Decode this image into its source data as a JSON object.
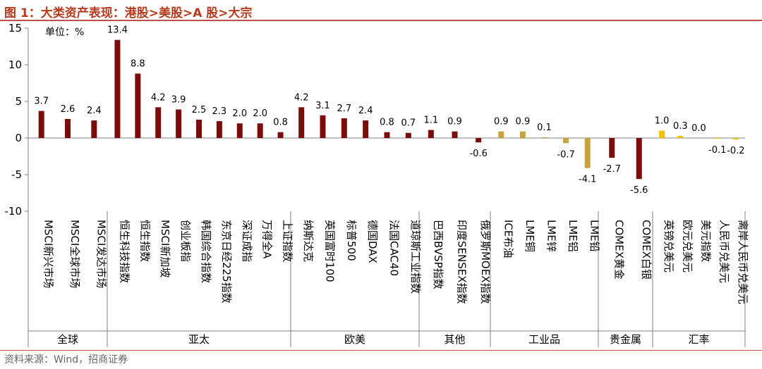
{
  "title": "图 1：大类资产表现：港股>美股>A 股>大宗",
  "source": "资料来源：Wind，招商证券",
  "unit_label": "单位：%",
  "colors": {
    "accent": "#b53a1e",
    "bar_default": "#7b0c0c",
    "bar_commodity": "#c9a240",
    "bar_fx": "#f2c200",
    "axis": "#808080"
  },
  "chart_data": {
    "type": "bar",
    "title": "大类资产表现：港股>美股>A 股>大宗",
    "ylabel": "单位：%",
    "ylim": [
      -10,
      15
    ],
    "yticks": [
      15,
      10,
      5,
      0,
      -5,
      -10
    ],
    "groups": [
      {
        "name": "全球",
        "items": [
          {
            "label": "MSCI新兴市场",
            "value": 3.7,
            "display": "3.7"
          },
          {
            "label": "MSCI全球市场",
            "value": 2.6,
            "display": "2.6"
          },
          {
            "label": "MSCI发达市场",
            "value": 2.4,
            "display": "2.4"
          }
        ]
      },
      {
        "name": "亚太",
        "items": [
          {
            "label": "恒生科技指数",
            "value": 13.4,
            "display": "13.4"
          },
          {
            "label": "恒生指数",
            "value": 8.8,
            "display": "8.8"
          },
          {
            "label": "MSCI新加坡",
            "value": 4.2,
            "display": "4.2"
          },
          {
            "label": "创业板指",
            "value": 3.9,
            "display": "3.9"
          },
          {
            "label": "韩国综合指数",
            "value": 2.5,
            "display": "2.5"
          },
          {
            "label": "东京日经225指数",
            "value": 2.3,
            "display": "2.3"
          },
          {
            "label": "深证成指",
            "value": 2.0,
            "display": "2.0"
          },
          {
            "label": "万得全A",
            "value": 2.0,
            "display": "2.0"
          },
          {
            "label": "上证指数",
            "value": 0.8,
            "display": "0.8"
          }
        ]
      },
      {
        "name": "欧美",
        "items": [
          {
            "label": "纳斯达克",
            "value": 4.2,
            "display": "4.2"
          },
          {
            "label": "英国富时100",
            "value": 3.1,
            "display": "3.1"
          },
          {
            "label": "标普500",
            "value": 2.7,
            "display": "2.7"
          },
          {
            "label": "德国DAX",
            "value": 2.4,
            "display": "2.4"
          },
          {
            "label": "法国CAC40",
            "value": 0.8,
            "display": "0.8"
          },
          {
            "label": "道琼斯工业指数",
            "value": 0.7,
            "display": "0.7"
          }
        ]
      },
      {
        "name": "其他",
        "items": [
          {
            "label": "巴西BVSP指数",
            "value": 1.1,
            "display": "1.1"
          },
          {
            "label": "印度SENSEX指数",
            "value": 0.9,
            "display": "0.9"
          },
          {
            "label": "俄罗斯MOEX指数",
            "value": -0.6,
            "display": "-0.6"
          }
        ]
      },
      {
        "name": "工业品",
        "items": [
          {
            "label": "ICE布油",
            "value": 0.9,
            "display": "0.9"
          },
          {
            "label": "LME铜",
            "value": 0.9,
            "display": "0.9"
          },
          {
            "label": "LME锌",
            "value": 0.1,
            "display": "0.1"
          },
          {
            "label": "LME铝",
            "value": -0.7,
            "display": "-0.7"
          },
          {
            "label": "LME铅",
            "value": -4.1,
            "display": "-4.1"
          }
        ]
      },
      {
        "name": "贵金属",
        "items": [
          {
            "label": "COMEX黄金",
            "value": -2.7,
            "display": "-2.7"
          },
          {
            "label": "COMEX白银",
            "value": -5.6,
            "display": "-5.6"
          }
        ]
      },
      {
        "name": "汇率",
        "items": [
          {
            "label": "英镑兑美元",
            "value": 1.0,
            "display": "1.0"
          },
          {
            "label": "欧元兑美元",
            "value": 0.3,
            "display": "0.3"
          },
          {
            "label": "美元指数",
            "value": 0.0,
            "display": "0.0"
          },
          {
            "label": "人民币兑美元",
            "value": -0.1,
            "display": "-0.1"
          },
          {
            "label": "离岸人民币兑美元",
            "value": -0.2,
            "display": "-0.2"
          }
        ]
      }
    ]
  }
}
